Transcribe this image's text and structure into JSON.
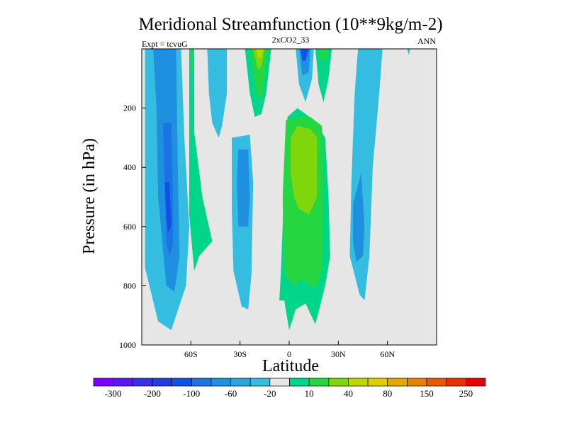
{
  "chart_data": {
    "type": "heatmap",
    "title": "Meridional Streamfunction (10**9kg/m-2)",
    "subtitle": "2xCO2_33",
    "left_label": "Expt = tcvuG",
    "right_label": "ANN",
    "xlabel": "Latitude",
    "ylabel": "Pressure (in hPa)",
    "xlim": [
      -90,
      90
    ],
    "ylim": [
      0,
      1000
    ],
    "y_reversed": true,
    "background": "#e6e6e6",
    "x_ticks": [
      {
        "value": -60,
        "label": "60S"
      },
      {
        "value": -30,
        "label": "30S"
      },
      {
        "value": 0,
        "label": "0"
      },
      {
        "value": 30,
        "label": "30N"
      },
      {
        "value": 60,
        "label": "60N"
      }
    ],
    "y_ticks": [
      {
        "value": 200,
        "label": "200"
      },
      {
        "value": 400,
        "label": "400"
      },
      {
        "value": 600,
        "label": "600"
      },
      {
        "value": 800,
        "label": "800"
      },
      {
        "value": 1000,
        "label": "1000"
      }
    ],
    "colorbar": {
      "colors": [
        "#7f00ff",
        "#5a18f0",
        "#3a2ee6",
        "#1e3fe0",
        "#1052e6",
        "#1c74e4",
        "#1f8fe0",
        "#2aa6df",
        "#34bde0",
        "#e6e6e6",
        "#00d68a",
        "#26d641",
        "#7fd60a",
        "#bcd600",
        "#e0cf00",
        "#e6a800",
        "#e68200",
        "#e65a00",
        "#e63200",
        "#e60000"
      ],
      "labels": [
        {
          "after_box": 1,
          "text": "-300"
        },
        {
          "after_box": 3,
          "text": "-200"
        },
        {
          "after_box": 5,
          "text": "-100"
        },
        {
          "after_box": 7,
          "text": "-60"
        },
        {
          "after_box": 9,
          "text": "-20"
        },
        {
          "after_box": 11,
          "text": "10"
        },
        {
          "after_box": 13,
          "text": "40"
        },
        {
          "after_box": 15,
          "text": "80"
        },
        {
          "after_box": 17,
          "text": "150"
        },
        {
          "after_box": 19,
          "text": "250"
        }
      ]
    },
    "contour_regions": [
      {
        "name": "sh-polar-cell-outer",
        "color": "#34bde0",
        "points": [
          [
            -88,
            0
          ],
          [
            -66,
            0
          ],
          [
            -64,
            300
          ],
          [
            -61,
            600
          ],
          [
            -63,
            800
          ],
          [
            -72,
            950
          ],
          [
            -80,
            920
          ],
          [
            -88,
            740
          ]
        ]
      },
      {
        "name": "sh-polar-cell-mid",
        "color": "#1f8fe0",
        "points": [
          [
            -83,
            0
          ],
          [
            -69,
            0
          ],
          [
            -68,
            400
          ],
          [
            -67,
            700
          ],
          [
            -70,
            820
          ],
          [
            -75,
            800
          ],
          [
            -80,
            500
          ],
          [
            -81,
            200
          ]
        ]
      },
      {
        "name": "sh-polar-cell-core",
        "color": "#1c74e4",
        "points": [
          [
            -77,
            250
          ],
          [
            -72,
            250
          ],
          [
            -71,
            500
          ],
          [
            -71,
            660
          ],
          [
            -73,
            700
          ],
          [
            -75,
            660
          ],
          [
            -76,
            450
          ]
        ]
      },
      {
        "name": "sh-polar-cell-inner",
        "color": "#1052e6",
        "points": [
          [
            -76,
            450
          ],
          [
            -73,
            450
          ],
          [
            -72,
            600
          ],
          [
            -74,
            620
          ],
          [
            -75,
            560
          ]
        ]
      },
      {
        "name": "sh-positive-strip",
        "color": "#00d68a",
        "points": [
          [
            -61,
            0
          ],
          [
            -58,
            0
          ],
          [
            -58,
            280
          ],
          [
            -53,
            500
          ],
          [
            -47,
            650
          ],
          [
            -55,
            700
          ],
          [
            -58,
            750
          ],
          [
            -61,
            560
          ],
          [
            -61,
            330
          ]
        ]
      },
      {
        "name": "sh-positive-strip-core",
        "color": "#26d641",
        "points": [
          [
            -60,
            0
          ],
          [
            -59,
            0
          ],
          [
            -59,
            80
          ],
          [
            -60,
            70
          ]
        ]
      },
      {
        "name": "sh-ferrel-upper",
        "color": "#34bde0",
        "points": [
          [
            -50,
            0
          ],
          [
            -38,
            0
          ],
          [
            -38,
            150
          ],
          [
            -41,
            260
          ],
          [
            -43,
            300
          ],
          [
            -47,
            250
          ],
          [
            -49,
            150
          ]
        ]
      },
      {
        "name": "sh-ferrel-lower",
        "color": "#34bde0",
        "points": [
          [
            -35,
            300
          ],
          [
            -24,
            290
          ],
          [
            -22,
            450
          ],
          [
            -23,
            760
          ],
          [
            -25,
            880
          ],
          [
            -29,
            870
          ],
          [
            -34,
            750
          ],
          [
            -35,
            550
          ]
        ]
      },
      {
        "name": "sh-ferrel-lower-core",
        "color": "#1f8fe0",
        "points": [
          [
            -31,
            340
          ],
          [
            -25,
            340
          ],
          [
            -24,
            500
          ],
          [
            -25,
            600
          ],
          [
            -31,
            600
          ],
          [
            -32,
            450
          ]
        ]
      },
      {
        "name": "sh-hadley-upper",
        "color": "#00d68a",
        "points": [
          [
            -27,
            0
          ],
          [
            -11,
            0
          ],
          [
            -14,
            150
          ],
          [
            -17,
            220
          ],
          [
            -21,
            230
          ],
          [
            -24,
            150
          ]
        ]
      },
      {
        "name": "sh-hadley-upper-mid",
        "color": "#26d641",
        "points": [
          [
            -24,
            0
          ],
          [
            -13,
            0
          ],
          [
            -15,
            100
          ],
          [
            -17,
            170
          ],
          [
            -20,
            150
          ],
          [
            -22,
            80
          ]
        ]
      },
      {
        "name": "sh-hadley-upper-core",
        "color": "#7fd60a",
        "points": [
          [
            -22,
            0
          ],
          [
            -15,
            0
          ],
          [
            -17,
            60
          ],
          [
            -19,
            70
          ]
        ]
      },
      {
        "name": "sh-hadley-upper-peak",
        "color": "#bcd600",
        "points": [
          [
            -20,
            0
          ],
          [
            -16,
            0
          ],
          [
            -17,
            30
          ],
          [
            -19,
            30
          ]
        ]
      },
      {
        "name": "nh-upper-cell-outer",
        "color": "#34bde0",
        "points": [
          [
            4,
            0
          ],
          [
            15,
            0
          ],
          [
            14,
            100
          ],
          [
            10,
            180
          ],
          [
            6,
            120
          ]
        ]
      },
      {
        "name": "nh-upper-cell-mid",
        "color": "#1f8fe0",
        "points": [
          [
            6,
            0
          ],
          [
            13,
            0
          ],
          [
            12,
            80
          ],
          [
            8,
            90
          ]
        ]
      },
      {
        "name": "nh-upper-cell-core",
        "color": "#1052e6",
        "points": [
          [
            7,
            0
          ],
          [
            12,
            0
          ],
          [
            10,
            40
          ],
          [
            8,
            40
          ]
        ]
      },
      {
        "name": "nh-positive-upper",
        "color": "#00d68a",
        "points": [
          [
            16,
            0
          ],
          [
            26,
            0
          ],
          [
            24,
            100
          ],
          [
            21,
            180
          ],
          [
            18,
            120
          ]
        ]
      },
      {
        "name": "nh-positive-upper-core",
        "color": "#26d641",
        "points": [
          [
            18,
            0
          ],
          [
            24,
            0
          ],
          [
            22,
            40
          ],
          [
            20,
            40
          ]
        ]
      },
      {
        "name": "eq-positive-outer",
        "color": "#00d68a",
        "points": [
          [
            -6,
            850
          ],
          [
            -3,
            850
          ],
          [
            0,
            950
          ],
          [
            4,
            880
          ],
          [
            10,
            860
          ],
          [
            16,
            930
          ],
          [
            22,
            800
          ],
          [
            25,
            700
          ],
          [
            24,
            500
          ],
          [
            22,
            300
          ],
          [
            15,
            240
          ],
          [
            5,
            200
          ],
          [
            -1,
            230
          ],
          [
            -3,
            400
          ],
          [
            -4,
            600
          ],
          [
            -5,
            750
          ]
        ]
      },
      {
        "name": "eq-positive-mid",
        "color": "#26d641",
        "points": [
          [
            -2,
            240
          ],
          [
            5,
            230
          ],
          [
            13,
            230
          ],
          [
            20,
            260
          ],
          [
            21,
            420
          ],
          [
            20,
            750
          ],
          [
            16,
            810
          ],
          [
            8,
            780
          ],
          [
            3,
            800
          ],
          [
            -3,
            760
          ],
          [
            -4,
            500
          ]
        ]
      },
      {
        "name": "eq-positive-core",
        "color": "#7fd60a",
        "points": [
          [
            1,
            300
          ],
          [
            5,
            260
          ],
          [
            13,
            270
          ],
          [
            17,
            300
          ],
          [
            17,
            500
          ],
          [
            12,
            560
          ],
          [
            6,
            540
          ],
          [
            3,
            500
          ],
          [
            1,
            420
          ]
        ]
      },
      {
        "name": "nh-ferrel",
        "color": "#34bde0",
        "points": [
          [
            40,
            150
          ],
          [
            42,
            0
          ],
          [
            57,
            0
          ],
          [
            55,
            150
          ],
          [
            51,
            400
          ],
          [
            49,
            700
          ],
          [
            46,
            850
          ],
          [
            43,
            830
          ],
          [
            37,
            700
          ],
          [
            38,
            450
          ]
        ]
      },
      {
        "name": "nh-ferrel-core",
        "color": "#1f8fe0",
        "points": [
          [
            39,
            520
          ],
          [
            44,
            420
          ],
          [
            46,
            600
          ],
          [
            45,
            700
          ],
          [
            41,
            720
          ],
          [
            39,
            650
          ]
        ]
      },
      {
        "name": "nh-polar-sliver",
        "color": "#34bde0",
        "points": [
          [
            72,
            0
          ],
          [
            74,
            0
          ],
          [
            73,
            20
          ]
        ]
      }
    ]
  }
}
